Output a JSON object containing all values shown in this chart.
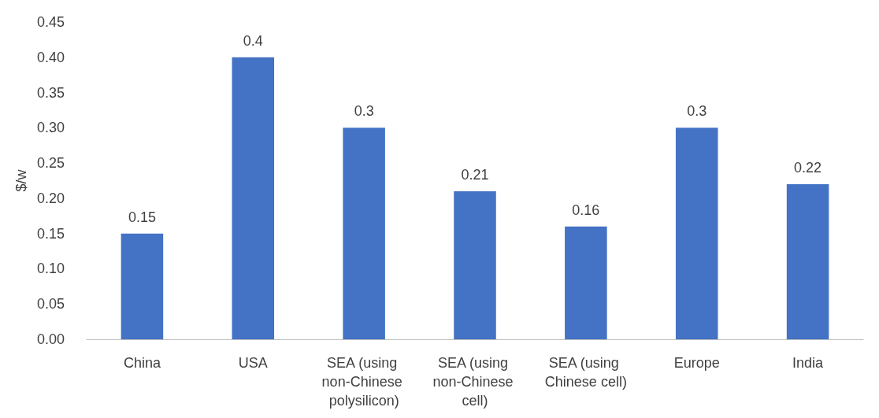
{
  "chart_data": {
    "type": "bar",
    "ylabel": "$/w",
    "categories": [
      "China",
      "USA",
      "SEA (using non-Chinese polysilicon)",
      "SEA (using non-Chinese cell)",
      "SEA (using Chinese cell)",
      "Europe",
      "India"
    ],
    "values": [
      0.15,
      0.4,
      0.3,
      0.21,
      0.16,
      0.3,
      0.22
    ],
    "color": "#4472c4",
    "ylim": [
      0,
      0.45
    ],
    "yticks": [
      {
        "value": 0,
        "label": "0.00"
      },
      {
        "value": 0.05,
        "label": "0.05"
      },
      {
        "value": 0.1,
        "label": "0.10"
      },
      {
        "value": 0.15,
        "label": "0.15"
      },
      {
        "value": 0.2,
        "label": "0.20"
      },
      {
        "value": 0.25,
        "label": "0.25"
      },
      {
        "value": 0.3,
        "label": "0.30"
      },
      {
        "value": 0.35,
        "label": "0.35"
      },
      {
        "value": 0.4,
        "label": "0.40"
      },
      {
        "value": 0.45,
        "label": "0.45"
      }
    ],
    "grid": false,
    "data_labels": true
  }
}
